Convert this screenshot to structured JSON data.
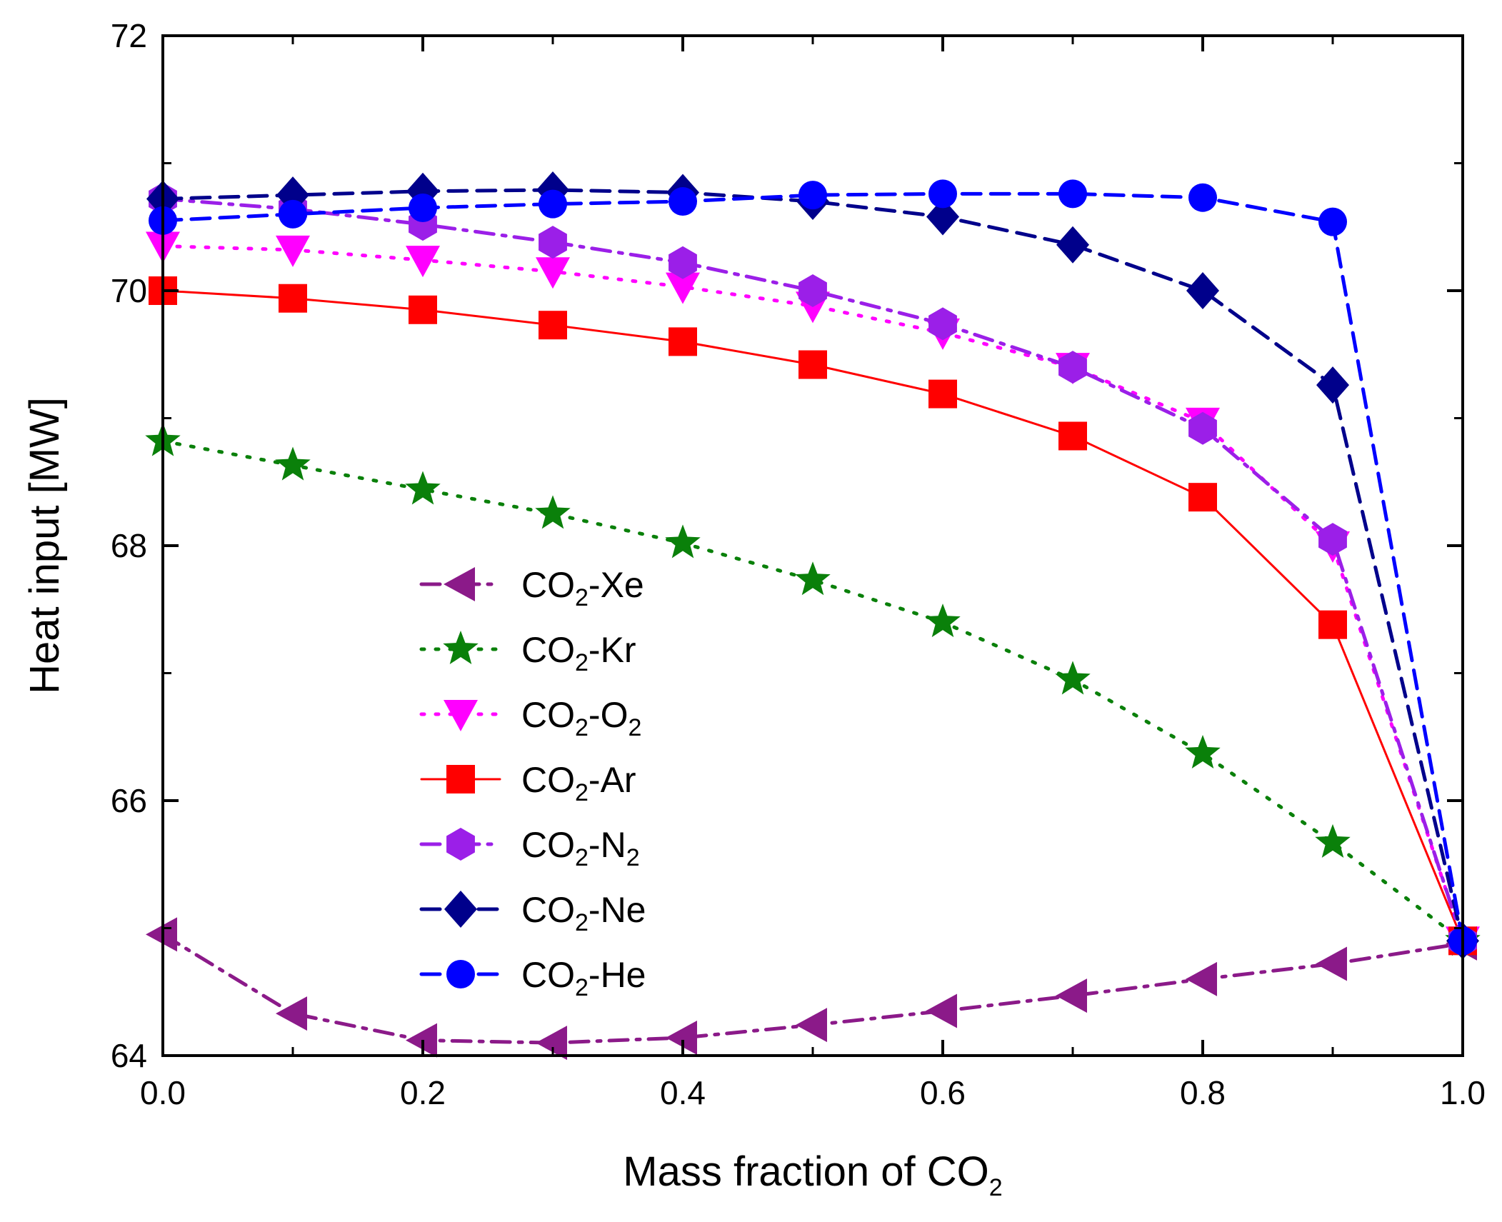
{
  "chart_data": {
    "type": "line",
    "title": "",
    "xlabel": "Mass fraction of CO",
    "xlabel_sub": "2",
    "ylabel": "Heat input [MW]",
    "xlim": [
      0.0,
      1.0
    ],
    "ylim": [
      64,
      72
    ],
    "x_ticks": [
      0.0,
      0.2,
      0.4,
      0.6,
      0.8,
      1.0
    ],
    "x_tick_labels": [
      "0.0",
      "0.2",
      "0.4",
      "0.6",
      "0.8",
      "1.0"
    ],
    "y_ticks": [
      64,
      66,
      68,
      70,
      72
    ],
    "y_tick_labels": [
      "64",
      "66",
      "68",
      "70",
      "72"
    ],
    "grid": false,
    "legend_position": "center-left",
    "x": [
      0.0,
      0.1,
      0.2,
      0.3,
      0.4,
      0.5,
      0.6,
      0.7,
      0.8,
      0.9,
      1.0
    ],
    "series": [
      {
        "name": "CO2-Xe",
        "label_prefix": "CO",
        "label_sub": "2",
        "label_suffix": "-Xe",
        "label_suffix_sub": "",
        "color": "#8B1A89",
        "dash": "dashdot",
        "marker": "triangle-left",
        "values": [
          64.95,
          64.33,
          64.12,
          64.1,
          64.14,
          64.24,
          64.35,
          64.47,
          64.6,
          64.72,
          64.88
        ]
      },
      {
        "name": "CO2-Kr",
        "label_prefix": "CO",
        "label_sub": "2",
        "label_suffix": "-Kr",
        "label_suffix_sub": "",
        "color": "#0A800A",
        "dash": "dot",
        "marker": "star",
        "values": [
          68.82,
          68.63,
          68.44,
          68.25,
          68.02,
          67.73,
          67.4,
          66.95,
          66.37,
          65.67,
          64.9
        ]
      },
      {
        "name": "CO2-O2",
        "label_prefix": "CO",
        "label_sub": "2",
        "label_suffix": "-O",
        "label_suffix_sub": "2",
        "color": "#FF00FF",
        "dash": "dot",
        "marker": "triangle-down",
        "values": [
          70.35,
          70.32,
          70.24,
          70.15,
          70.03,
          69.88,
          69.67,
          69.4,
          68.97,
          68.0,
          64.9
        ]
      },
      {
        "name": "CO2-Ar",
        "label_prefix": "CO",
        "label_sub": "2",
        "label_suffix": "-Ar",
        "label_suffix_sub": "",
        "color": "#FF0000",
        "dash": "solid",
        "marker": "square",
        "values": [
          70.0,
          69.94,
          69.85,
          69.73,
          69.6,
          69.42,
          69.19,
          68.86,
          68.38,
          67.38,
          64.9
        ]
      },
      {
        "name": "CO2-N2",
        "label_prefix": "CO",
        "label_sub": "2",
        "label_suffix": "-N",
        "label_suffix_sub": "2",
        "color": "#9B1FE8",
        "dash": "dashdot",
        "marker": "hexagon",
        "values": [
          70.72,
          70.64,
          70.52,
          70.38,
          70.22,
          70.0,
          69.74,
          69.4,
          68.92,
          68.05,
          64.9
        ]
      },
      {
        "name": "CO2-Ne",
        "label_prefix": "CO",
        "label_sub": "2",
        "label_suffix": "-Ne",
        "label_suffix_sub": "",
        "color": "#00008B",
        "dash": "dash",
        "marker": "diamond",
        "values": [
          70.72,
          70.75,
          70.78,
          70.79,
          70.77,
          70.7,
          70.58,
          70.36,
          70.0,
          69.26,
          64.9
        ]
      },
      {
        "name": "CO2-He",
        "label_prefix": "CO",
        "label_sub": "2",
        "label_suffix": "-He",
        "label_suffix_sub": "",
        "color": "#0000FF",
        "dash": "dash",
        "marker": "circle",
        "values": [
          70.55,
          70.6,
          70.65,
          70.68,
          70.7,
          70.75,
          70.76,
          70.76,
          70.73,
          70.54,
          64.9
        ]
      }
    ]
  }
}
